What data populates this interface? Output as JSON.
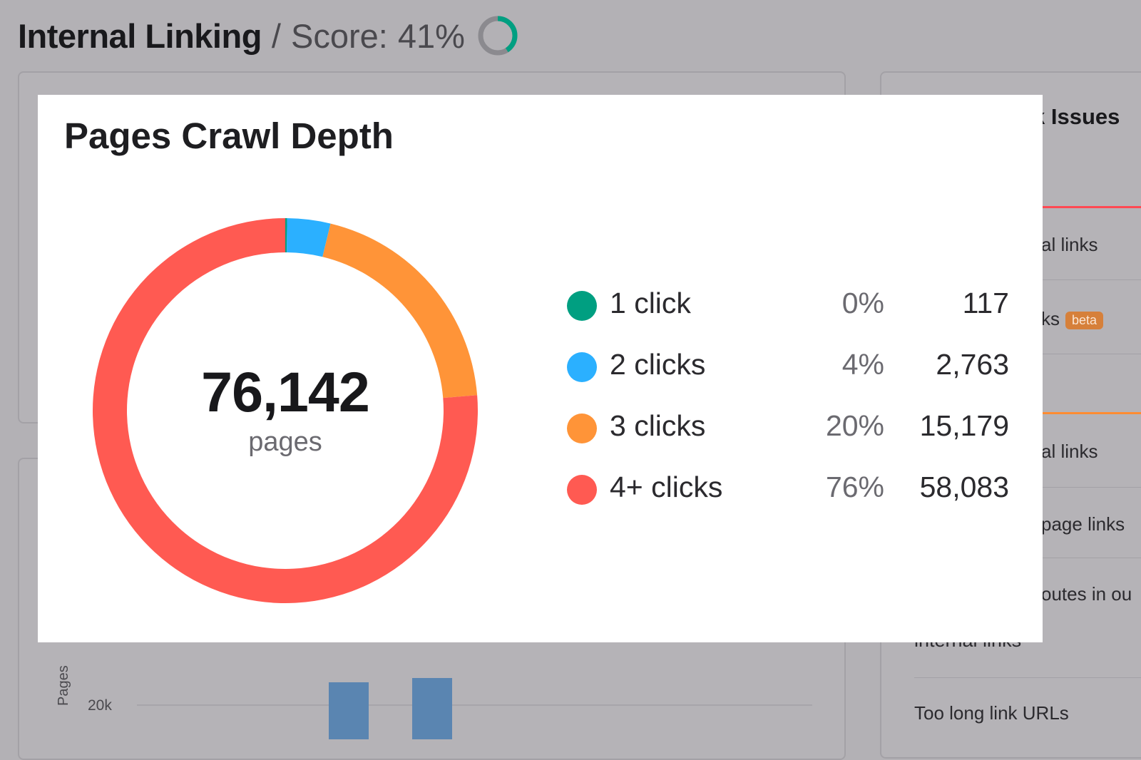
{
  "header": {
    "title": "Internal Linking",
    "separator": "/",
    "score_label": "Score:",
    "score_value": "41%",
    "score_fraction": 0.41,
    "score_ring_color": "#009f81"
  },
  "right_panel": {
    "title_fragment": "k Issues",
    "rows": [
      {
        "text": "al links",
        "accent": "#ff4953"
      },
      {
        "text": "ks",
        "badge": "beta"
      },
      {
        "text": ""
      },
      {
        "text": "al links",
        "accent": "#ff8c32"
      },
      {
        "text": "page links"
      },
      {
        "text": "outes in ou"
      }
    ],
    "clipped_row": "internal links",
    "last_row": "Too long link URLs"
  },
  "bottom_chart": {
    "y_axis_label": "Pages",
    "y_tick": "20k"
  },
  "modal": {
    "title": "Pages Crawl Depth",
    "total": "76,142",
    "total_unit": "pages"
  },
  "chart_data": {
    "type": "pie",
    "donut": true,
    "title": "Pages Crawl Depth",
    "series": [
      {
        "name": "1 click",
        "percent_label": "0%",
        "count_label": "117",
        "value": 117,
        "color": "#009f81"
      },
      {
        "name": "2 clicks",
        "percent_label": "4%",
        "count_label": "2,763",
        "value": 2763,
        "color": "#2bb0ff"
      },
      {
        "name": "3 clicks",
        "percent_label": "20%",
        "count_label": "15,179",
        "value": 15179,
        "color": "#ff9438"
      },
      {
        "name": "4+ clicks",
        "percent_label": "76%",
        "count_label": "58,083",
        "value": 58083,
        "color": "#ff5a52"
      }
    ]
  }
}
